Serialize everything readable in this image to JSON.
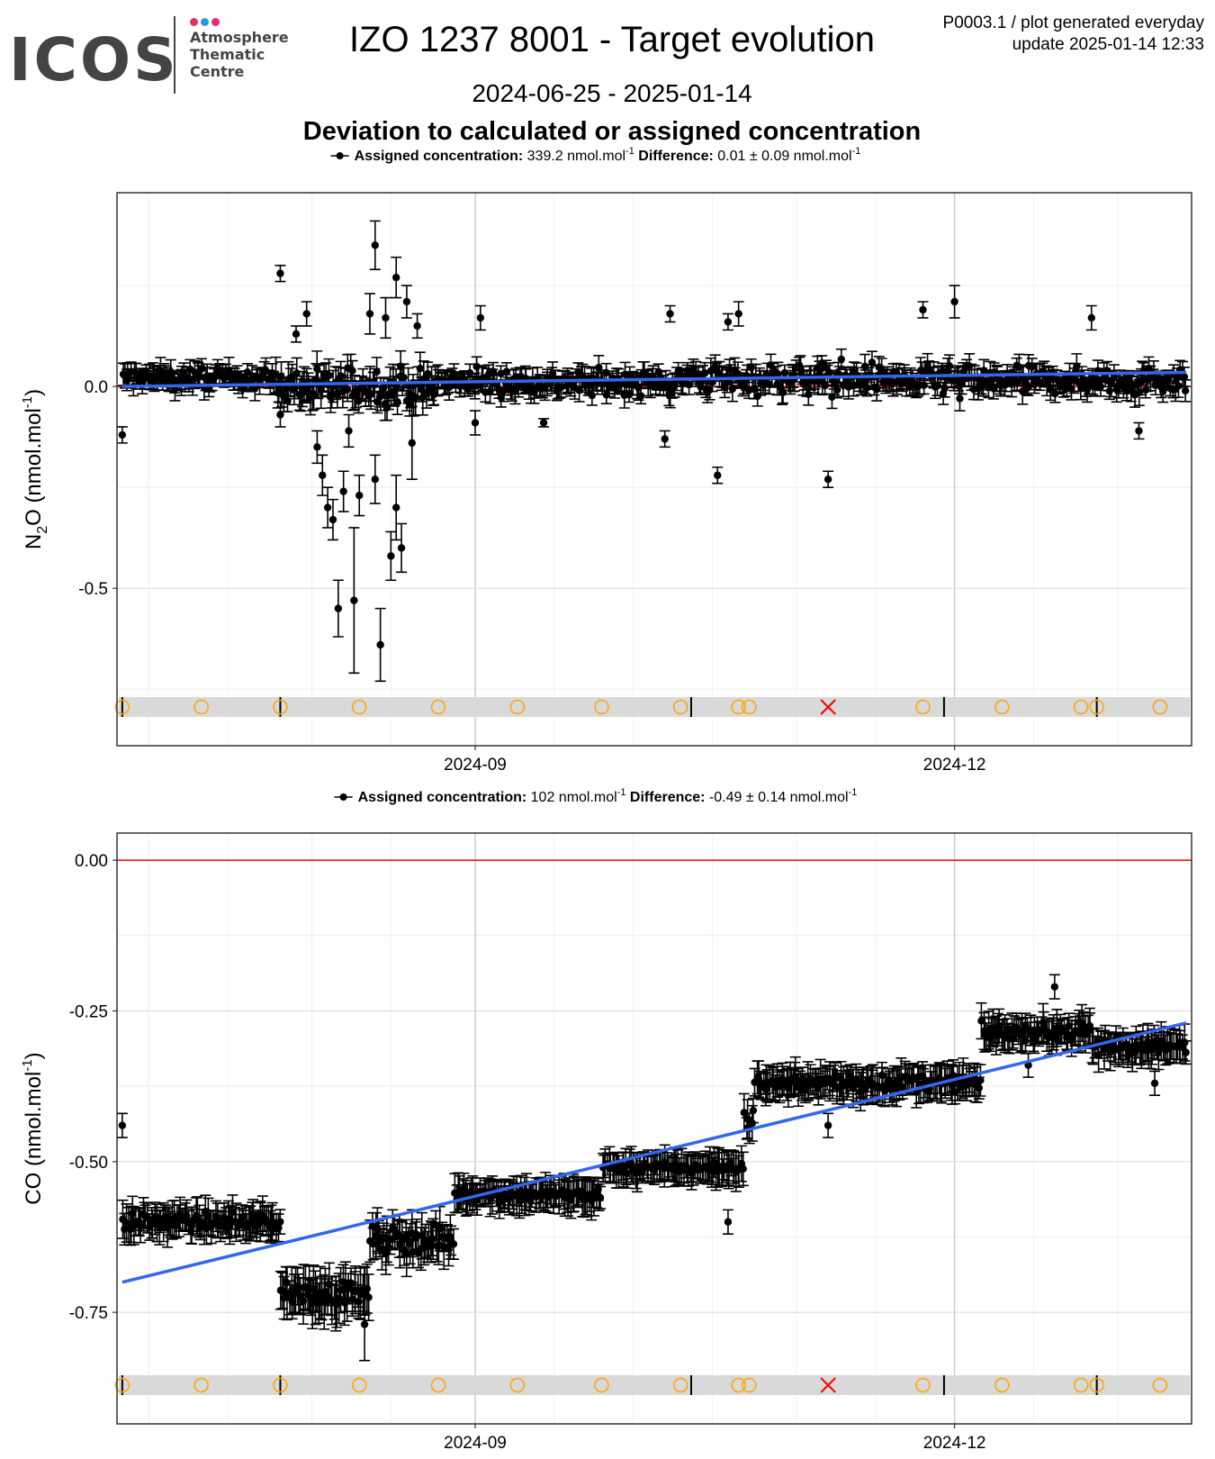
{
  "logo": {
    "word": "ICOS",
    "line1": "Atmosphere",
    "line2": "Thematic",
    "line3": "Centre",
    "dot_colors": [
      "#e0316f",
      "#2a9bd4",
      "#e0316f"
    ]
  },
  "header": {
    "title": "IZO 1237 8001 - Target evolution",
    "meta_line1": "P0003.1 / plot generated everyday",
    "meta_line2": "update  2025-01-14 12:33",
    "date_range": "2024-06-25 - 2025-01-14",
    "subtitle": "Deviation to calculated or assigned concentration"
  },
  "colors": {
    "points": "#000000",
    "trend": "#3366ee",
    "zero_line": "#ff0000",
    "event_circle": "#ffa500",
    "event_cross": "#ff0000",
    "event_band": "#d9d9d9"
  },
  "chart_data": [
    {
      "type": "scatter",
      "gas": "N2O",
      "ylabel_base": "N",
      "ylabel_sub": "2",
      "ylabel_rest": "O (nmol.mol",
      "ylabel_sup": "-1",
      "ylabel_end": ")",
      "legend_label": "Assigned concentration:",
      "legend_value": "339.2 nmol.mol",
      "legend_sup": "-1",
      "diff_label": "Difference:",
      "diff_value": "0.01 ± 0.09 nmol.mol",
      "diff_sup": "-1",
      "xlim": [
        "2024-06-25",
        "2025-01-15"
      ],
      "ylim": [
        -0.89,
        0.48
      ],
      "yticks": [
        0.0,
        -0.5
      ],
      "ytick_labels": [
        "0.0",
        "-0.5"
      ],
      "xticks": [
        "2024-09-01",
        "2024-12-01"
      ],
      "xtick_labels": [
        "2024-09",
        "2024-12"
      ],
      "trend": {
        "start": [
          "2024-06-26",
          0.0
        ],
        "end": [
          "2025-01-14",
          0.035
        ]
      },
      "zero_line": 0.0,
      "outliers": [
        [
          "2024-06-26",
          -0.12,
          0.02
        ],
        [
          "2024-07-26",
          0.28,
          0.02
        ],
        [
          "2024-07-26",
          -0.07,
          0.03
        ],
        [
          "2024-07-29",
          0.13,
          0.02
        ],
        [
          "2024-07-31",
          0.18,
          0.03
        ],
        [
          "2024-08-02",
          -0.15,
          0.04
        ],
        [
          "2024-08-03",
          -0.22,
          0.05
        ],
        [
          "2024-08-04",
          -0.3,
          0.05
        ],
        [
          "2024-08-05",
          -0.33,
          0.05
        ],
        [
          "2024-08-06",
          -0.55,
          0.07
        ],
        [
          "2024-08-07",
          -0.26,
          0.05
        ],
        [
          "2024-08-08",
          -0.11,
          0.04
        ],
        [
          "2024-08-09",
          -0.53,
          0.18
        ],
        [
          "2024-08-10",
          -0.27,
          0.05
        ],
        [
          "2024-08-12",
          0.18,
          0.05
        ],
        [
          "2024-08-13",
          0.35,
          0.06
        ],
        [
          "2024-08-13",
          -0.23,
          0.06
        ],
        [
          "2024-08-14",
          -0.64,
          0.09
        ],
        [
          "2024-08-15",
          0.17,
          0.05
        ],
        [
          "2024-08-16",
          -0.42,
          0.06
        ],
        [
          "2024-08-17",
          -0.3,
          0.08
        ],
        [
          "2024-08-17",
          0.27,
          0.05
        ],
        [
          "2024-08-18",
          -0.4,
          0.06
        ],
        [
          "2024-08-19",
          0.21,
          0.04
        ],
        [
          "2024-08-20",
          -0.14,
          0.09
        ],
        [
          "2024-08-21",
          0.15,
          0.03
        ],
        [
          "2024-09-01",
          -0.09,
          0.03
        ],
        [
          "2024-09-02",
          0.17,
          0.03
        ],
        [
          "2024-09-14",
          -0.09,
          0.01
        ],
        [
          "2024-10-07",
          -0.13,
          0.02
        ],
        [
          "2024-10-08",
          0.18,
          0.02
        ],
        [
          "2024-10-17",
          -0.22,
          0.02
        ],
        [
          "2024-10-19",
          0.16,
          0.02
        ],
        [
          "2024-10-21",
          0.18,
          0.03
        ],
        [
          "2024-11-07",
          -0.23,
          0.02
        ],
        [
          "2024-11-25",
          0.19,
          0.02
        ],
        [
          "2024-12-01",
          0.21,
          0.04
        ],
        [
          "2024-12-02",
          -0.03,
          0.03
        ],
        [
          "2024-12-27",
          0.17,
          0.03
        ],
        [
          "2025-01-05",
          -0.11,
          0.02
        ]
      ],
      "clusters": [
        {
          "from": "2024-06-26",
          "to": "2024-07-25",
          "mean": 0.02,
          "spread": 0.035,
          "err": 0.025
        },
        {
          "from": "2024-07-25",
          "to": "2024-08-25",
          "mean": 0.0,
          "spread": 0.07,
          "err": 0.035
        },
        {
          "from": "2024-08-25",
          "to": "2024-10-10",
          "mean": 0.01,
          "spread": 0.045,
          "err": 0.025
        },
        {
          "from": "2024-10-10",
          "to": "2024-11-20",
          "mean": 0.02,
          "spread": 0.055,
          "err": 0.025
        },
        {
          "from": "2024-11-20",
          "to": "2025-01-14",
          "mean": 0.015,
          "spread": 0.05,
          "err": 0.025
        }
      ]
    },
    {
      "type": "scatter",
      "gas": "CO",
      "ylabel_base": "CO (nmol.mol",
      "ylabel_sub": "",
      "ylabel_rest": "",
      "ylabel_sup": "-1",
      "ylabel_end": ")",
      "legend_label": "Assigned concentration:",
      "legend_value": "102 nmol.mol",
      "legend_sup": "-1",
      "diff_label": "Difference:",
      "diff_value": "-0.49 ± 0.14 nmol.mol",
      "diff_sup": "-1",
      "xlim": [
        "2024-06-25",
        "2025-01-15"
      ],
      "ylim": [
        -0.935,
        0.045
      ],
      "yticks": [
        0.0,
        -0.25,
        -0.5,
        -0.75
      ],
      "ytick_labels": [
        "0.00",
        "-0.25",
        "-0.50",
        "-0.75"
      ],
      "xticks": [
        "2024-09-01",
        "2024-12-01"
      ],
      "xtick_labels": [
        "2024-09",
        "2024-12"
      ],
      "trend": {
        "start": [
          "2024-06-26",
          -0.7
        ],
        "end": [
          "2025-01-14",
          -0.27
        ]
      },
      "zero_line": 0.0,
      "outliers": [
        [
          "2024-06-26",
          -0.44,
          0.02
        ],
        [
          "2024-08-11",
          -0.77,
          0.06
        ],
        [
          "2024-10-19",
          -0.6,
          0.02
        ],
        [
          "2024-11-07",
          -0.44,
          0.02
        ],
        [
          "2024-12-20",
          -0.21,
          0.02
        ],
        [
          "2024-12-15",
          -0.34,
          0.02
        ],
        [
          "2025-01-08",
          -0.37,
          0.02
        ]
      ],
      "clusters": [
        {
          "from": "2024-06-26",
          "to": "2024-07-26",
          "mean": -0.6,
          "spread": 0.02,
          "err": 0.025
        },
        {
          "from": "2024-07-26",
          "to": "2024-08-12",
          "mean": -0.72,
          "spread": 0.025,
          "err": 0.035
        },
        {
          "from": "2024-08-12",
          "to": "2024-08-28",
          "mean": -0.63,
          "spread": 0.03,
          "err": 0.03
        },
        {
          "from": "2024-08-28",
          "to": "2024-09-25",
          "mean": -0.555,
          "spread": 0.015,
          "err": 0.025
        },
        {
          "from": "2024-09-25",
          "to": "2024-10-22",
          "mean": -0.51,
          "spread": 0.015,
          "err": 0.025
        },
        {
          "from": "2024-10-22",
          "to": "2024-10-24",
          "mean": -0.43,
          "spread": 0.03,
          "err": 0.025
        },
        {
          "from": "2024-10-24",
          "to": "2024-12-06",
          "mean": -0.37,
          "spread": 0.02,
          "err": 0.025
        },
        {
          "from": "2024-12-06",
          "to": "2024-12-27",
          "mean": -0.285,
          "spread": 0.02,
          "err": 0.025
        },
        {
          "from": "2024-12-27",
          "to": "2025-01-14",
          "mean": -0.31,
          "spread": 0.02,
          "err": 0.025
        }
      ]
    }
  ],
  "events": {
    "circles": [
      "2024-06-26",
      "2024-07-11",
      "2024-07-26",
      "2024-08-10",
      "2024-08-25",
      "2024-09-09",
      "2024-09-25",
      "2024-10-10",
      "2024-10-21",
      "2024-10-23",
      "2024-11-25",
      "2024-12-10",
      "2024-12-25",
      "2024-12-28",
      "2025-01-09"
    ],
    "crosses": [
      "2024-11-07"
    ],
    "ticks": [
      "2024-06-26",
      "2024-07-26",
      "2024-10-12",
      "2024-11-29",
      "2024-12-28"
    ]
  }
}
